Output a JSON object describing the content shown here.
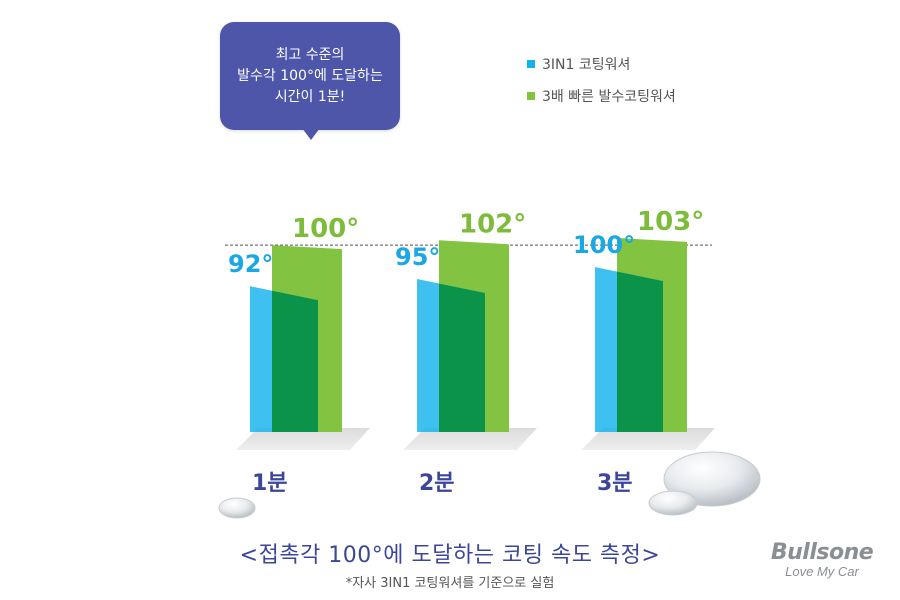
{
  "chart_data": {
    "type": "bar",
    "title": "<접촉각 100°에 도달하는 코팅 속도 측정>",
    "note": "*자사 3IN1 코팅워셔를 기준으로 실험",
    "categories": [
      "1분",
      "2분",
      "3분"
    ],
    "series": [
      {
        "name": "3IN1 코팅워셔",
        "values": [
          92,
          95,
          100
        ],
        "labels": [
          "92°",
          "95°",
          "100°"
        ],
        "color": "#13b2ee"
      },
      {
        "name": "3배 빠른 발수코팅워셔",
        "values": [
          100,
          102,
          103
        ],
        "labels": [
          "100°",
          "102°",
          "103°"
        ],
        "color": "#82c341"
      }
    ],
    "reference_line": {
      "value": 100,
      "style": "dashed"
    },
    "callout_lines": [
      "최고 수준의",
      "발수각 100°에 도달하는",
      "시간이 1분!"
    ],
    "legend_position": "top-right"
  },
  "brand": {
    "name": "Bullsone",
    "tagline": "Love My Car"
  }
}
